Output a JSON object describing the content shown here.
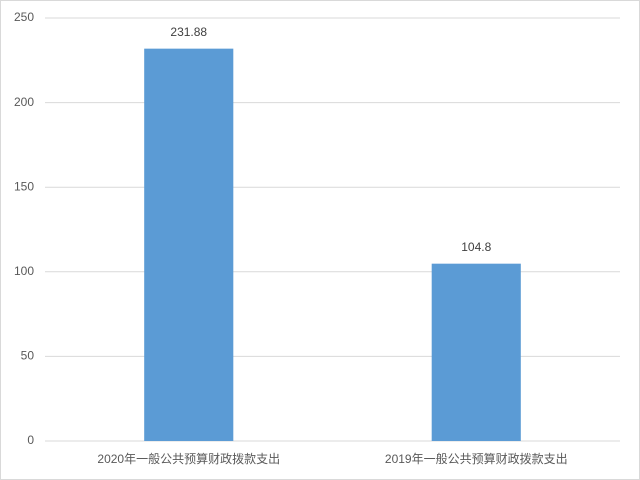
{
  "chart_data": {
    "type": "bar",
    "categories": [
      "2020年一般公共预算财政拨款支出",
      "2019年一般公共预算财政拨款支出"
    ],
    "values": [
      231.88,
      104.8
    ],
    "color": "#5b9bd5",
    "ylim": [
      0,
      250
    ],
    "yticks": [
      0,
      50,
      100,
      150,
      200,
      250
    ],
    "grid": true
  }
}
